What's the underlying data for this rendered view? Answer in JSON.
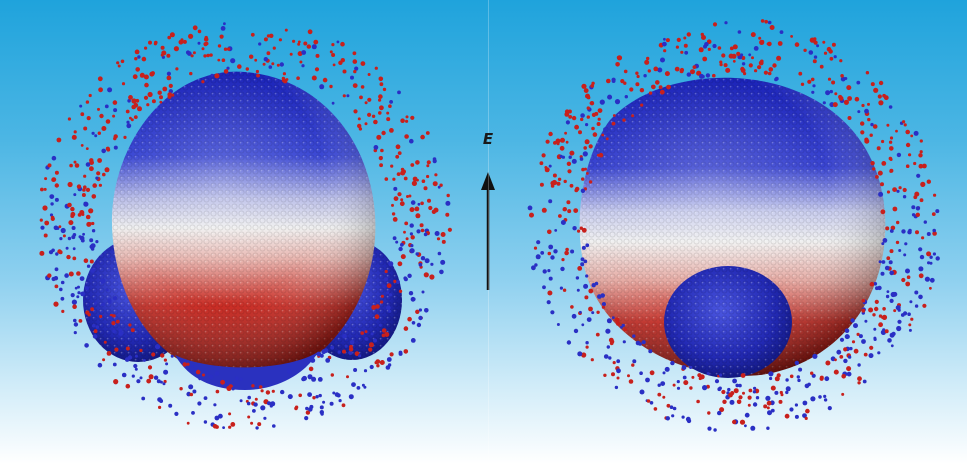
{
  "field": {
    "label": "E",
    "direction": "up"
  },
  "colors": {
    "background_top": "#1fa3dc",
    "background_bottom": "#ffffff",
    "positive_ion": "#c8201c",
    "negative_ion": "#2a2fc4",
    "neutral_band": "#e8e8ea",
    "arrow": "#111111"
  },
  "panels": [
    {
      "name": "left-droplet",
      "description_icon": "droplet-with-two-lobes-icon"
    },
    {
      "name": "right-droplet",
      "description_icon": "droplet-with-bottom-lobe-icon"
    }
  ]
}
